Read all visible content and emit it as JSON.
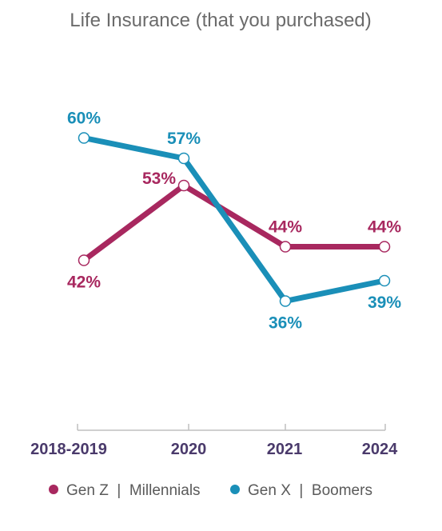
{
  "chart_data": {
    "type": "line",
    "title": "Life Insurance (that you purchased)",
    "categories": [
      "2018-2019",
      "2020",
      "2021",
      "2024"
    ],
    "ylim": [
      25,
      65
    ],
    "grid": false,
    "legend_position": "bottom",
    "series": [
      {
        "name": "Gen Z  |  Millennials",
        "color": "#a8285f",
        "values": [
          42,
          53,
          44,
          44
        ],
        "labels": [
          "42%",
          "53%",
          "44%",
          "44%"
        ],
        "label_positions": [
          "below",
          "left",
          "above",
          "above"
        ]
      },
      {
        "name": "Gen X  |  Boomers",
        "color": "#1a8fb8",
        "values": [
          60,
          57,
          36,
          39
        ],
        "labels": [
          "60%",
          "57%",
          "36%",
          "39%"
        ],
        "label_positions": [
          "above",
          "above",
          "below",
          "below"
        ]
      }
    ]
  }
}
